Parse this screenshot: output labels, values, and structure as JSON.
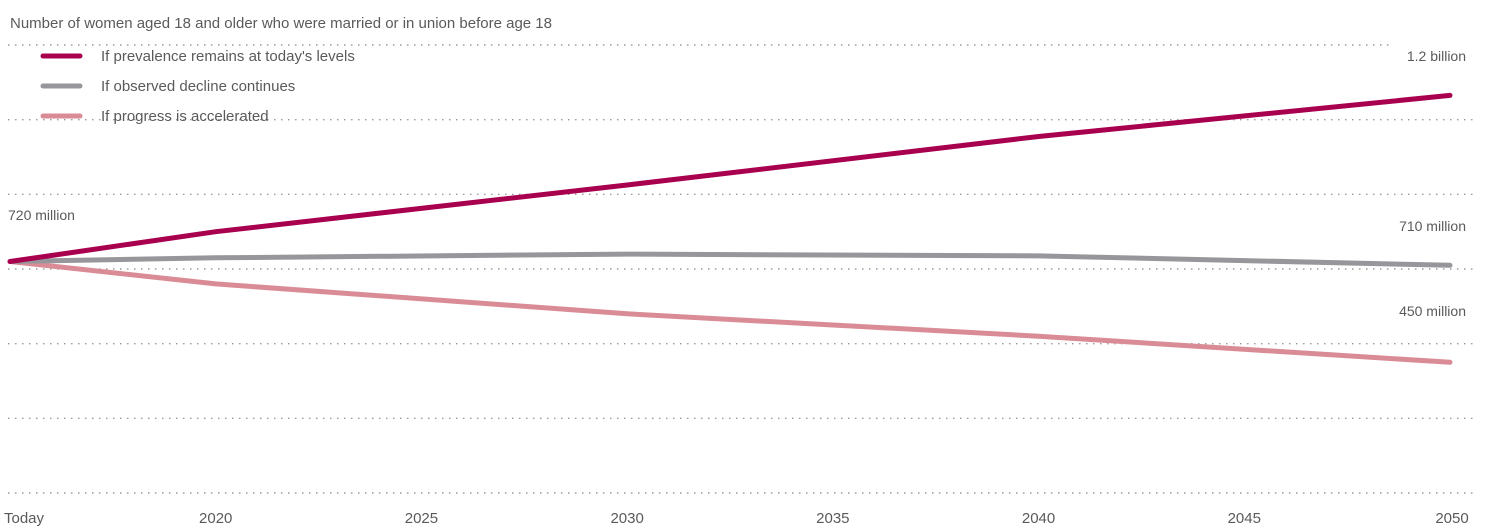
{
  "chart_data": {
    "type": "line",
    "title": "Number of women aged 18 and older who were married or in union before age 18",
    "x": [
      2015,
      2020,
      2030,
      2040,
      2050
    ],
    "xticks": [
      2015,
      2020,
      2025,
      2030,
      2035,
      2040,
      2045,
      2050
    ],
    "xtick_labels": [
      "Today",
      "2020",
      "2025",
      "2030",
      "2035",
      "2040",
      "2045",
      "2050"
    ],
    "ylim": [
      100,
      1300
    ],
    "grid": true,
    "legend": "top-left",
    "colors": {
      "prevalence_constant": "#a8004f",
      "decline_continues": "#97969b",
      "progress_accelerated": "#d98c96",
      "text": "#5a5a5a",
      "grid": "#9a9a9a"
    },
    "series": [
      {
        "name": "If prevalence remains at today's levels",
        "key": "prevalence_constant",
        "values": [
          720,
          800,
          925,
          1055,
          1165
        ]
      },
      {
        "name": "If observed decline continues",
        "key": "decline_continues",
        "values": [
          720,
          730,
          740,
          735,
          710
        ]
      },
      {
        "name": "If progress is accelerated",
        "key": "progress_accelerated",
        "values": [
          720,
          660,
          580,
          520,
          450
        ]
      }
    ],
    "annotations": {
      "start": "720 million",
      "prevalence_end": "1.2 billion",
      "decline_end": "710 million",
      "accelerated_end": "450 million"
    }
  }
}
